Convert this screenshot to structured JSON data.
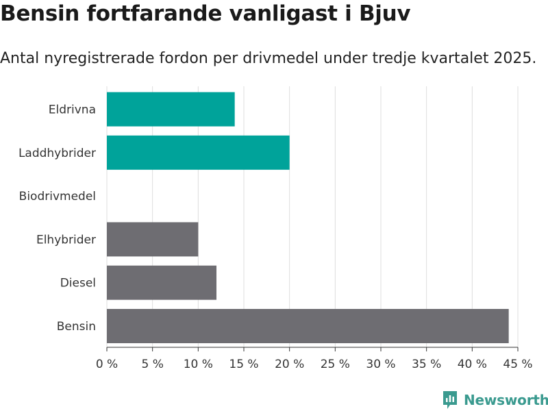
{
  "header": {
    "title": "Bensin fortfarande vanligast i Bjuv",
    "subtitle": "Antal nyregistrerade fordon per drivmedel under tredje kvartalet 2025."
  },
  "brand": {
    "name": "Newsworthy"
  },
  "colors": {
    "highlight": "#00a39a",
    "neutral": "#6e6d72",
    "grid": "#dddddd",
    "axis": "#333333",
    "brand": "#3a9a8f"
  },
  "chart_data": {
    "type": "bar",
    "orientation": "horizontal",
    "title": "Bensin fortfarande vanligast i Bjuv",
    "subtitle": "Antal nyregistrerade fordon per drivmedel under tredje kvartalet 2025.",
    "xlabel": "",
    "ylabel": "",
    "categories": [
      "Eldrivna",
      "Laddhybrider",
      "Biodrivmedel",
      "Elhybrider",
      "Diesel",
      "Bensin"
    ],
    "values": [
      14,
      20,
      0,
      10,
      12,
      44
    ],
    "unit": "%",
    "highlighted": [
      true,
      true,
      false,
      false,
      false,
      false
    ],
    "xlim": [
      0,
      45
    ],
    "ticks": [
      0,
      5,
      10,
      15,
      20,
      25,
      30,
      35,
      40,
      45
    ],
    "tick_labels": [
      "0 %",
      "5 %",
      "10 %",
      "15 %",
      "20 %",
      "25 %",
      "30 %",
      "35 %",
      "40 %",
      "45 %"
    ],
    "grid": true,
    "legend": "none"
  }
}
